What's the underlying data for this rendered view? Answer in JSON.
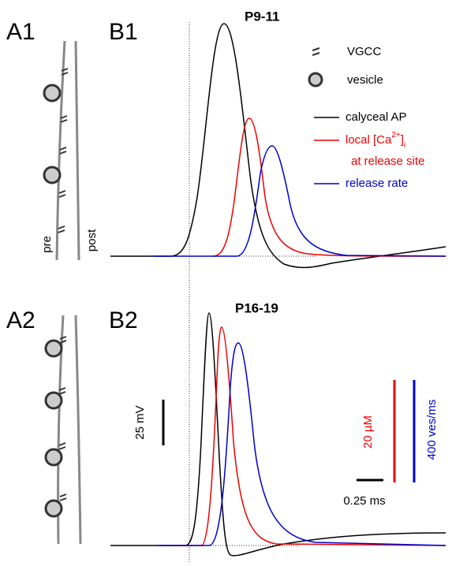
{
  "panels": {
    "a1": "A1",
    "b1": "B1",
    "a2": "A2",
    "b2": "B2"
  },
  "titles": {
    "b1": "P9-11",
    "b2": "P16-19"
  },
  "schematic": {
    "pre": "pre",
    "post": "post"
  },
  "legend": {
    "vgcc": "VGCC",
    "vesicle": "vesicle",
    "ap": "calyceal AP",
    "ca": {
      "prefix": "local [Ca",
      "sup": "2+",
      "close": "]",
      "sub": "i",
      "line2": "at release site"
    },
    "rate": "release rate"
  },
  "scale_bars": {
    "voltage": "25 mV",
    "calcium": "20 µM",
    "rate": "400 ves/ms",
    "time": "0.25 ms"
  }
}
